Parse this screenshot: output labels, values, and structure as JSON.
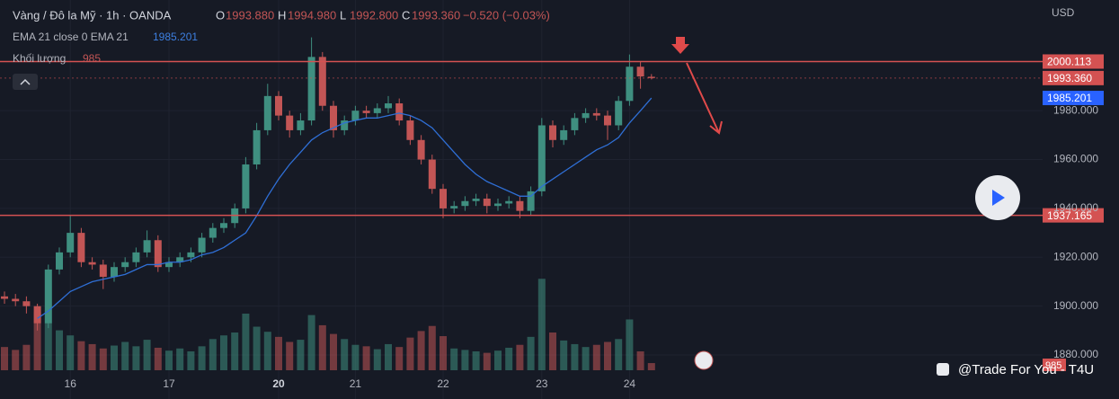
{
  "header": {
    "symbol": "Vàng / Đô la Mỹ · 1h · OANDA",
    "ohlc": [
      {
        "key": "O",
        "value": "1993.880"
      },
      {
        "key": "H",
        "value": "1994.980"
      },
      {
        "key": "L",
        "value": "1992.800"
      },
      {
        "key": "C",
        "value": "1993.360"
      }
    ],
    "change": "−0.520 (−0.03%)",
    "indicator": "EMA 21 close 0 EMA 21",
    "indicator_value": "1985.201",
    "volume_label": "Khối lượng",
    "volume_value": "985"
  },
  "watermark": "@Trade For You - T4U",
  "chart_data": {
    "type": "candlestick",
    "currency": "USD",
    "categories": [
      null,
      null,
      null,
      null,
      null,
      null,
      "16",
      null,
      null,
      null,
      null,
      null,
      null,
      null,
      null,
      "17",
      null,
      null,
      null,
      null,
      null,
      null,
      null,
      null,
      null,
      "20",
      null,
      null,
      null,
      null,
      null,
      null,
      "21",
      null,
      null,
      null,
      null,
      null,
      null,
      null,
      "22",
      null,
      null,
      null,
      null,
      null,
      null,
      null,
      null,
      "23",
      null,
      null,
      null,
      null,
      null,
      null,
      null,
      "24",
      null,
      null
    ],
    "open": [
      1904,
      1903,
      1902,
      1900,
      1893,
      1915,
      1922,
      1930,
      1918,
      1917,
      1912,
      1916,
      1918,
      1922,
      1927,
      1916,
      1918,
      1920,
      1922,
      1928,
      1932,
      1934,
      1940,
      1958,
      1972,
      1986,
      1978,
      1972,
      1976,
      2002,
      1982,
      1972,
      1976,
      1980,
      1979,
      1981,
      1983,
      1976,
      1968,
      1960,
      1948,
      1940,
      1941,
      1943,
      1944,
      1941,
      1942,
      1943,
      1939,
      1947,
      1974,
      1968,
      1972,
      1977,
      1979,
      1978,
      1974,
      1984,
      1998,
      1993.88
    ],
    "high": [
      1906,
      1905,
      1904,
      1901,
      1917,
      1924,
      1937,
      1932,
      1920,
      1919,
      1918,
      1920,
      1924,
      1931,
      1929,
      1920,
      1922,
      1924,
      1930,
      1934,
      1936,
      1942,
      1961,
      1975,
      1991,
      1988,
      1980,
      1979,
      2010,
      2004,
      1984,
      1978,
      1982,
      1982,
      1983,
      1986,
      1985,
      1978,
      1970,
      1962,
      1950,
      1943,
      1945,
      1946,
      1946,
      1944,
      1945,
      1945,
      1949,
      1977,
      1976,
      1974,
      1979,
      1981,
      1981,
      1980,
      1986,
      2003,
      2000,
      1994.98
    ],
    "low": [
      1901,
      1900,
      1897,
      1890,
      1891,
      1913,
      1920,
      1916,
      1915,
      1907,
      1910,
      1914,
      1916,
      1920,
      1914,
      1914,
      1916,
      1918,
      1920,
      1926,
      1930,
      1932,
      1938,
      1956,
      1970,
      1976,
      1969,
      1970,
      1974,
      1980,
      1969,
      1970,
      1974,
      1977,
      1977,
      1979,
      1974,
      1966,
      1958,
      1946,
      1936,
      1938,
      1939,
      1941,
      1938,
      1939,
      1940,
      1936,
      1937,
      1945,
      1965,
      1966,
      1970,
      1975,
      1976,
      1968,
      1972,
      1982,
      1989,
      1992.8
    ],
    "close": [
      1903,
      1902,
      1900,
      1893,
      1915,
      1922,
      1930,
      1918,
      1917,
      1912,
      1916,
      1918,
      1922,
      1927,
      1916,
      1918,
      1920,
      1922,
      1928,
      1932,
      1934,
      1940,
      1958,
      1972,
      1986,
      1978,
      1972,
      1976,
      2002,
      1982,
      1972,
      1976,
      1980,
      1979,
      1981,
      1983,
      1976,
      1968,
      1960,
      1948,
      1940,
      1941,
      1943,
      1944,
      1941,
      1942,
      1943,
      1939,
      1947,
      1974,
      1968,
      1972,
      1977,
      1979,
      1978,
      1974,
      1984,
      1998,
      1994,
      1993.36
    ],
    "ema": {
      "color": "#2f6fd6",
      "values": [
        null,
        null,
        null,
        1895,
        1898,
        1902,
        1906,
        1908,
        1910,
        1911,
        1912,
        1913,
        1915,
        1917,
        1917,
        1918,
        1918,
        1919,
        1921,
        1922,
        1924,
        1927,
        1930,
        1937,
        1945,
        1952,
        1958,
        1963,
        1968,
        1971,
        1973,
        1975,
        1976,
        1977,
        1977,
        1978,
        1979,
        1978,
        1976,
        1973,
        1968,
        1963,
        1958,
        1954,
        1951,
        1949,
        1947,
        1945,
        1945,
        1949,
        1952,
        1955,
        1958,
        1961,
        1964,
        1966,
        1969,
        1975,
        1980,
        1985.201
      ]
    },
    "volume": {
      "ylim": [
        0,
        13000
      ],
      "values": [
        3200,
        2800,
        3500,
        8000,
        6500,
        5500,
        4800,
        4000,
        3600,
        3000,
        3400,
        3900,
        3300,
        4200,
        3100,
        2700,
        3000,
        2600,
        3300,
        4300,
        4800,
        5200,
        7800,
        6000,
        5300,
        4600,
        3900,
        4200,
        7600,
        6200,
        5000,
        4300,
        3500,
        3300,
        2900,
        3600,
        3200,
        4500,
        5400,
        6100,
        4700,
        3000,
        2800,
        2600,
        2400,
        2700,
        3100,
        3500,
        4600,
        12600,
        5200,
        4100,
        3600,
        3200,
        3500,
        3900,
        4300,
        7000,
        2600,
        985
      ]
    },
    "up_color": "#3f8f80",
    "down_color": "#c25555",
    "ylim": [
      1862,
      2025.3
    ],
    "yticks": [
      {
        "value": 1880,
        "label": "1880.000"
      },
      {
        "value": 1900,
        "label": "1900.000"
      },
      {
        "value": 1920,
        "label": "1920.000"
      },
      {
        "value": 1940,
        "label": "1940.000"
      },
      {
        "value": 1960,
        "label": "1960.000"
      },
      {
        "value": 1980,
        "label": "1980.000"
      }
    ],
    "levels": [
      {
        "value": 2000.113,
        "label": "2000.113"
      },
      {
        "value": 1937.165,
        "label": "1937.165"
      }
    ],
    "last_price": {
      "value": 1993.36,
      "label": "1993.360"
    },
    "ema_price": {
      "value": 1985.201,
      "label": "1985.201"
    },
    "last_volume": {
      "value": 985,
      "label": "985"
    }
  }
}
